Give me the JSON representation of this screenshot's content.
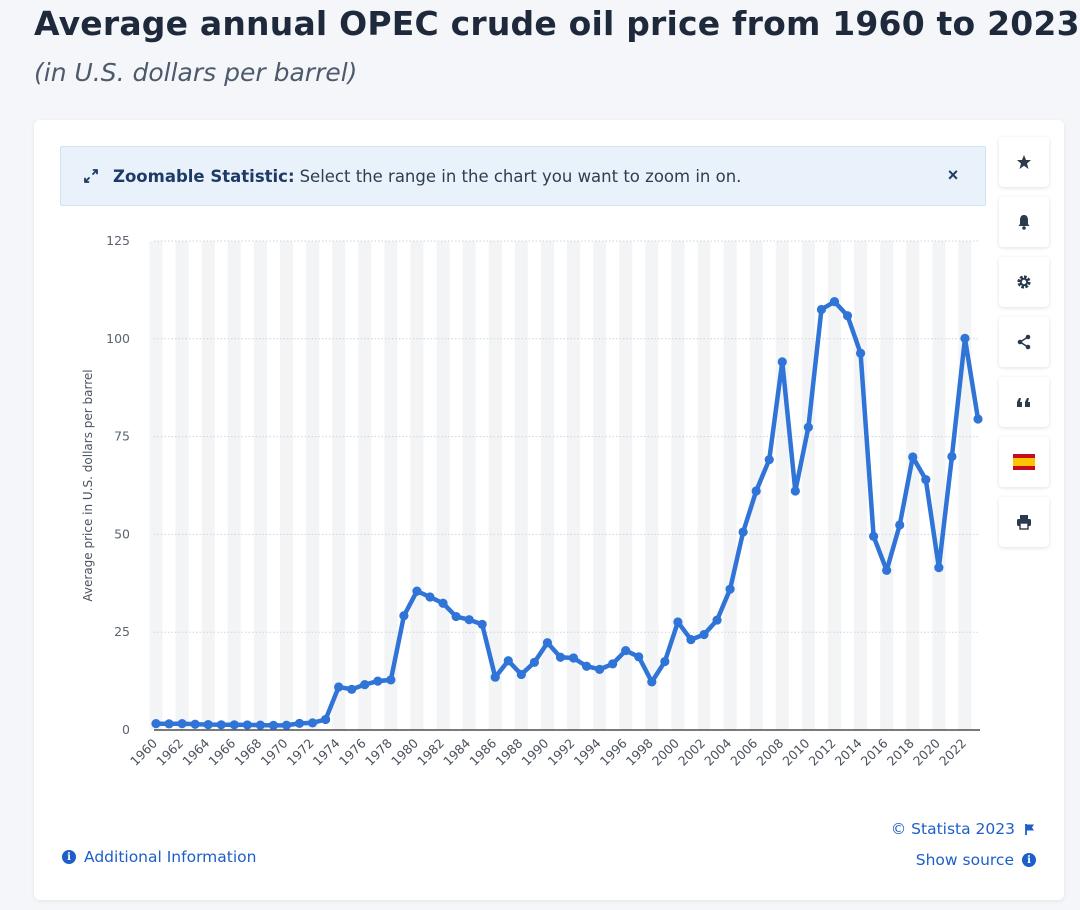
{
  "page": {
    "title": "Average annual OPEC crude oil price from 1960 to 2023",
    "subtitle": "(in U.S. dollars per barrel)"
  },
  "banner": {
    "bold_text": "Zoomable Statistic:",
    "text": "Select the range in the chart you want to zoom in on.",
    "close_label": "×"
  },
  "footer": {
    "additional_info": "Additional Information",
    "copyright": "© Statista 2023",
    "show_source": "Show source"
  },
  "toolbar": {
    "buttons": [
      "star-icon",
      "bell-icon",
      "gear-icon",
      "share-icon",
      "quote-icon",
      "spain-flag-icon",
      "print-icon"
    ]
  },
  "colors": {
    "line": "#2f74d6",
    "accent": "#1d5fc9",
    "title": "#1e2a3b",
    "band": "#f3f4f6"
  },
  "chart_data": {
    "type": "line",
    "title": "",
    "xlabel": "",
    "ylabel": "Average price in U.S. dollars per barrel",
    "ylim": [
      0,
      125
    ],
    "yticks": [
      0,
      25,
      50,
      75,
      100,
      125
    ],
    "x_tick_labels": [
      "1960",
      "1962",
      "1964",
      "1966",
      "1968",
      "1970",
      "1972",
      "1974",
      "1976",
      "1978",
      "1980",
      "1982",
      "1984",
      "1986",
      "1988",
      "1990",
      "1992",
      "1994",
      "1996",
      "1998",
      "2000",
      "2002",
      "2004",
      "2006",
      "2008",
      "2010",
      "2012",
      "2014",
      "2016",
      "2018",
      "2020",
      "2022"
    ],
    "grid": true,
    "legend": "none",
    "series": [
      {
        "x": [
          1960,
          1961,
          1962,
          1963,
          1964,
          1965,
          1966,
          1967,
          1968,
          1969,
          1970,
          1971,
          1972,
          1973,
          1974,
          1975,
          1976,
          1977,
          1978,
          1979,
          1980,
          1981,
          1982,
          1983,
          1984,
          1985,
          1986,
          1987,
          1988,
          1989,
          1990,
          1991,
          1992,
          1993,
          1994,
          1995,
          1996,
          1997,
          1998,
          1999,
          2000,
          2001,
          2002,
          2003,
          2004,
          2005,
          2006,
          2007,
          2008,
          2009,
          2010,
          2011,
          2012,
          2013,
          2014,
          2015,
          2016,
          2017,
          2018,
          2019,
          2020,
          2021,
          2022,
          2023
        ],
        "values": [
          1.63,
          1.57,
          1.63,
          1.47,
          1.39,
          1.33,
          1.33,
          1.3,
          1.24,
          1.19,
          1.21,
          1.7,
          1.82,
          2.7,
          11.0,
          10.4,
          11.6,
          12.5,
          12.8,
          29.2,
          35.5,
          34.0,
          32.4,
          29.0,
          28.2,
          27.0,
          13.5,
          17.7,
          14.2,
          17.3,
          22.3,
          18.6,
          18.4,
          16.3,
          15.5,
          16.9,
          20.3,
          18.7,
          12.3,
          17.5,
          27.6,
          23.1,
          24.4,
          28.1,
          36.0,
          50.6,
          61.1,
          69.1,
          94.1,
          61.1,
          77.4,
          107.5,
          109.5,
          105.9,
          96.3,
          49.5,
          40.8,
          52.4,
          69.8,
          64.0,
          41.5,
          69.9,
          100.1,
          79.5
        ]
      }
    ]
  }
}
